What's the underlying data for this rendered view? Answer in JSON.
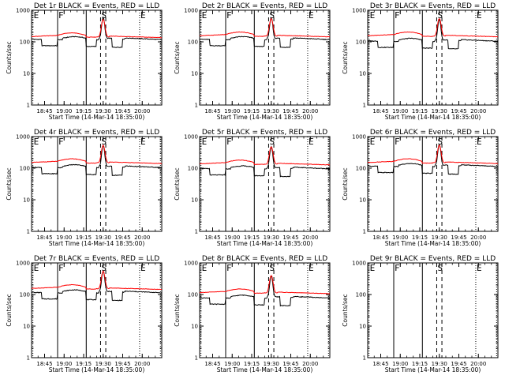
{
  "chart_data": {
    "type": "line",
    "layout": "3x3 grid",
    "panel_defaults": {
      "xlabel": "Start Time (14-Mar-14 18:35:00)",
      "ylabel": "Counts/sec",
      "x_ticks": [
        "18:45",
        "19:00",
        "19:15",
        "19:30",
        "19:45",
        "20:00"
      ],
      "x_tick_minutes": [
        10,
        25,
        40,
        55,
        70,
        85
      ],
      "xlim_minutes": [
        0,
        100
      ],
      "y_scale": "log",
      "ylim": [
        1,
        1000
      ],
      "y_ticks": [
        "1",
        "10",
        "100",
        "1000"
      ],
      "y_tick_values": [
        1,
        10,
        100,
        1000
      ],
      "markers": [
        {
          "label": "E",
          "minute": 1,
          "style": "dotted"
        },
        {
          "label": "F",
          "minute": 20,
          "style": "solid"
        },
        {
          "label": "",
          "minute": 42,
          "style": "solid"
        },
        {
          "label": "S",
          "minute": 53,
          "style": "dashed"
        },
        {
          "label": "",
          "minute": 57,
          "style": "dashed"
        },
        {
          "label": "E",
          "minute": 83,
          "style": "dotted"
        },
        {
          "label": "",
          "minute": 99,
          "style": "dotted"
        }
      ]
    },
    "series_colors": {
      "events": "#000000",
      "lld": "#ff0000"
    },
    "panels": [
      {
        "title": "Det 1r BLACK = Events, RED = LLD",
        "has_data": true,
        "events_base": 130,
        "lld_base": 160
      },
      {
        "title": "Det 2r BLACK = Events, RED = LLD",
        "has_data": true,
        "events_base": 130,
        "lld_base": 170
      },
      {
        "title": "Det 3r BLACK = Events, RED = LLD",
        "has_data": true,
        "events_base": 115,
        "lld_base": 170
      },
      {
        "title": "Det 4r BLACK = Events, RED = LLD",
        "has_data": true,
        "events_base": 115,
        "lld_base": 165
      },
      {
        "title": "Det 5r BLACK = Events, RED = LLD",
        "has_data": true,
        "events_base": 105,
        "lld_base": 150
      },
      {
        "title": "Det 6r BLACK = Events, RED = LLD",
        "has_data": true,
        "events_base": 125,
        "lld_base": 165
      },
      {
        "title": "Det 7r BLACK = Events, RED = LLD",
        "has_data": true,
        "events_base": 125,
        "lld_base": 170
      },
      {
        "title": "Det 8r BLACK = Events, RED = LLD",
        "has_data": true,
        "events_base": 85,
        "lld_base": 125
      },
      {
        "title": "Det 9r BLACK = Events, RED = LLD",
        "has_data": false
      }
    ]
  }
}
